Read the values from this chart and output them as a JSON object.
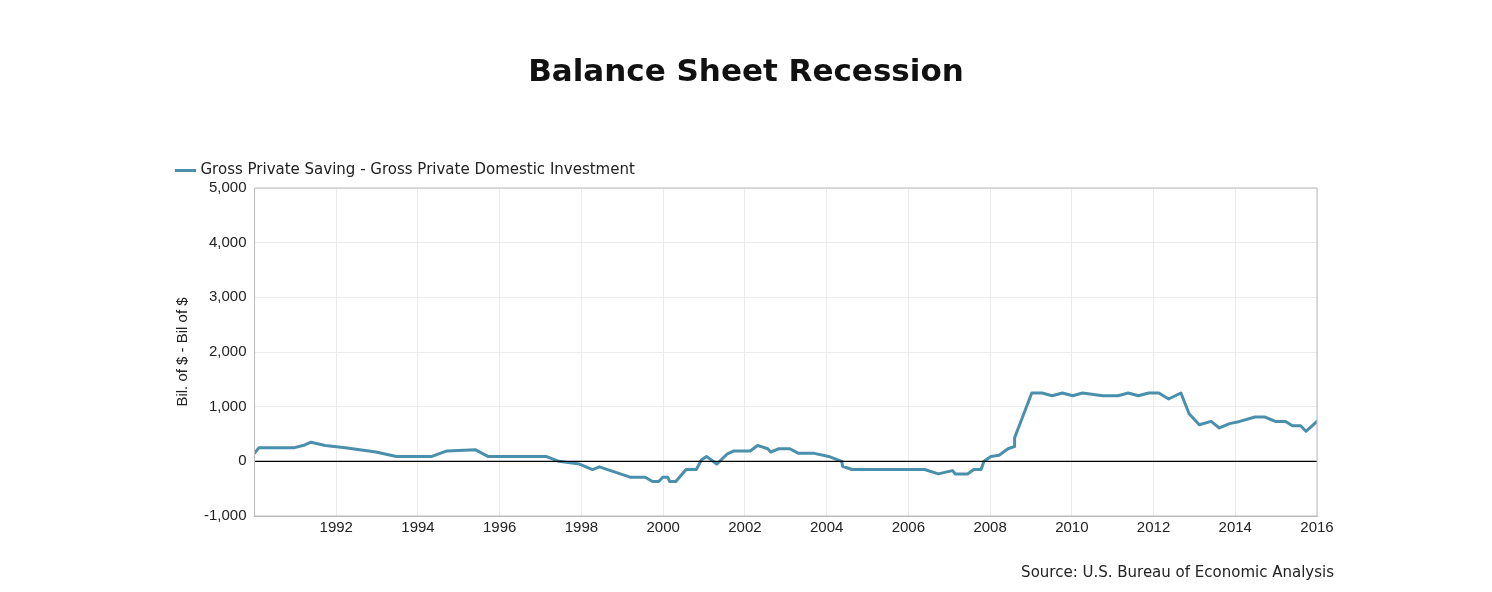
{
  "chart_data": {
    "type": "line",
    "title": "Balance Sheet Recession",
    "ylabel": "Bil. of $ - Bil of $",
    "annotations": [
      "Source: U.S. Bureau of Economic Analysis"
    ],
    "x": [
      1990.0,
      1990.11,
      1990.98,
      1991.23,
      1991.38,
      1991.73,
      1992.22,
      1992.97,
      1993.47,
      1994.34,
      1994.71,
      1995.41,
      1995.71,
      1997.13,
      1997.45,
      1997.95,
      1998.27,
      1998.44,
      1999.19,
      1999.56,
      1999.74,
      1999.89,
      1999.99,
      2000.11,
      2000.16,
      2000.31,
      2000.56,
      2000.81,
      2000.94,
      2001.06,
      2001.31,
      2001.56,
      2001.73,
      2002.13,
      2002.31,
      2002.56,
      2002.63,
      2002.83,
      2003.1,
      2003.3,
      2003.67,
      2004.05,
      2004.37,
      2004.39,
      2004.62,
      2006.4,
      2006.73,
      2007.08,
      2007.15,
      2007.45,
      2007.6,
      2007.78,
      2007.85,
      2008.02,
      2008.22,
      2008.44,
      2008.59,
      2008.6,
      2009.02,
      2009.27,
      2009.52,
      2009.77,
      2010.02,
      2010.26,
      2010.76,
      2011.13,
      2011.38,
      2011.63,
      2011.88,
      2012.13,
      2012.37,
      2012.67,
      2012.87,
      2013.12,
      2013.41,
      2013.61,
      2013.86,
      2014.11,
      2014.48,
      2014.73,
      2014.98,
      2015.23,
      2015.4,
      2015.6,
      2015.73,
      2016.0
    ],
    "series": [
      {
        "name": "Gross Private Saving - Gross Private Domestic Investment",
        "color": "#4a8fab",
        "values": [
          150,
          250,
          250,
          300,
          350,
          290,
          250,
          170,
          90,
          90,
          190,
          210,
          90,
          90,
          0,
          -50,
          -150,
          -100,
          -290,
          -290,
          -370,
          -370,
          -290,
          -290,
          -370,
          -370,
          -150,
          -150,
          30,
          90,
          -50,
          130,
          190,
          190,
          290,
          230,
          170,
          230,
          230,
          150,
          150,
          90,
          0,
          -90,
          -150,
          -150,
          -230,
          -170,
          -230,
          -230,
          -150,
          -150,
          0,
          90,
          110,
          230,
          270,
          430,
          1250,
          1250,
          1200,
          1250,
          1200,
          1250,
          1200,
          1200,
          1250,
          1200,
          1250,
          1250,
          1140,
          1250,
          870,
          670,
          730,
          610,
          690,
          730,
          810,
          810,
          730,
          730,
          650,
          650,
          550,
          730
        ]
      }
    ],
    "xlim": [
      1990,
      2016
    ],
    "xticks": [
      1992,
      1994,
      1996,
      1998,
      2000,
      2002,
      2004,
      2006,
      2008,
      2010,
      2012,
      2014,
      2016
    ],
    "ylim": [
      -1000,
      5000
    ],
    "yticks": [
      {
        "value": -1000,
        "label": "-1,000"
      },
      0,
      {
        "value": 1000,
        "label": "1,000"
      },
      {
        "value": 2000,
        "label": "2,000"
      },
      {
        "value": 3000,
        "label": "3,000"
      },
      {
        "value": 4000,
        "label": "4,000"
      },
      {
        "value": 5000,
        "label": "5,000"
      }
    ],
    "ref_lines": [
      {
        "axis": "y",
        "value": 0,
        "color": "#000000"
      }
    ],
    "grid": true,
    "legend": "top left",
    "marker": "none",
    "line_style": "solid"
  }
}
